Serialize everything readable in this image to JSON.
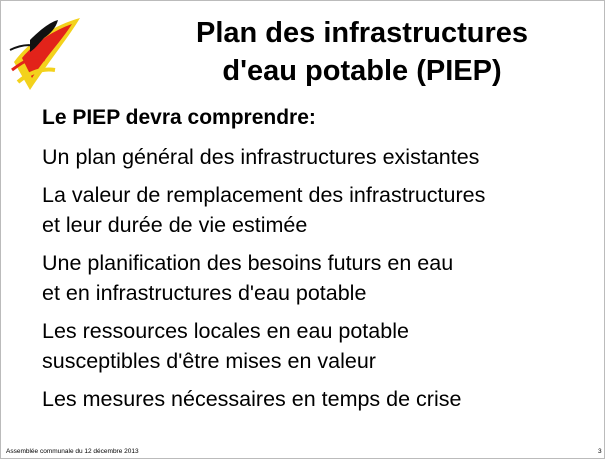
{
  "slide": {
    "title": [
      "Plan des infrastructures",
      "d'eau potable (PIEP)"
    ],
    "subtitle": "Le PIEP devra comprendre:",
    "items": [
      [
        "Un plan général des infrastructures existantes"
      ],
      [
        "La valeur de remplacement des infrastructures",
        "et leur durée de vie estimée"
      ],
      [
        "Une planification des besoins futurs en eau",
        "et en infrastructures d'eau potable"
      ],
      [
        "Les ressources locales en eau potable",
        "susceptibles d'être mises en valeur"
      ],
      [
        "Les mesures nécessaires en temps de crise"
      ]
    ],
    "footer": "Assemblée communale du 12 décembre 2013",
    "page": "3"
  }
}
